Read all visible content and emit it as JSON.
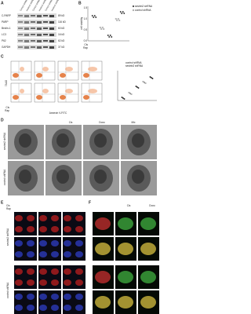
{
  "panels": {
    "a": "A",
    "b": "B",
    "c": "C",
    "d": "D",
    "e": "E",
    "f": "F"
  },
  "blot": {
    "columns": [
      "Control shRNA",
      "sestrin2 shRNA",
      "Control shRNA",
      "sestrin2 shRNA",
      "Control shRNA",
      "sestrin2 shRNA"
    ],
    "treatments": [
      "Cis",
      "Rap"
    ],
    "proteins": [
      "C-PARP",
      "PARP",
      "Beclin-1",
      "LC3",
      "P62",
      "GAPDH"
    ],
    "sizes": [
      "89 kD",
      "116 kD",
      "60 kD",
      "16 kD",
      "62 kD",
      "37 kD"
    ]
  },
  "viability": {
    "y_label": "cell viability",
    "yticks": [
      "1.5",
      "1.0",
      "0.5",
      "0.0"
    ],
    "legend": [
      "sestrin2 shRNA",
      "control shRNA"
    ],
    "rows": [
      "Cis",
      "Rap"
    ]
  },
  "flow": {
    "y_label": "7AAD",
    "x_label": "Annexin V-FITC",
    "rows": [
      "Cis",
      "Rap"
    ],
    "legend": [
      "control shRNA",
      "sestrin2 shRNA"
    ]
  },
  "em": {
    "columns": [
      "Cis",
      "Doxo",
      "Mix"
    ],
    "rows": [
      "sestrin2 shRNA",
      "control shRNA"
    ]
  },
  "fluor": {
    "rows": [
      "sestrin2 shRNA",
      "control shRNA"
    ],
    "header": [
      "Cis",
      "Rap"
    ]
  },
  "fluor_f": {
    "columns": [
      "Cis",
      "Doxo"
    ]
  }
}
